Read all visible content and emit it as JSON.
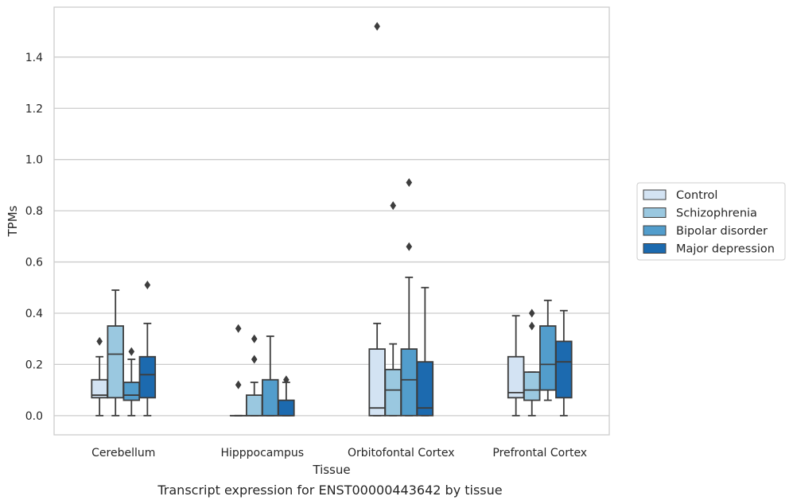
{
  "chart_data": {
    "type": "box",
    "caption": "Transcript expression for ENST00000443642 by tissue",
    "xlabel": "Tissue",
    "ylabel": "TPMs",
    "ylim": [
      -0.075,
      1.595
    ],
    "yticks": [
      0.0,
      0.2,
      0.4,
      0.6,
      0.8,
      1.0,
      1.2,
      1.4
    ],
    "ytick_labels": [
      "0.0",
      "0.2",
      "0.4",
      "0.6",
      "0.8",
      "1.0",
      "1.2",
      "1.4"
    ],
    "grid": "horizontal",
    "categories": [
      "Cerebellum",
      "Hipppocampus",
      "Orbitofontal Cortex",
      "Prefrontal Cortex"
    ],
    "legend_position": "right",
    "series": [
      {
        "name": "Control",
        "color": "#d3e3f3",
        "boxes": [
          {
            "whislo": 0.0,
            "q1": 0.07,
            "med": 0.08,
            "q3": 0.14,
            "whishi": 0.23,
            "fliers": [
              0.29
            ]
          },
          {
            "whislo": 0.0,
            "q1": 0.0,
            "med": 0.0,
            "q3": 0.0,
            "whishi": 0.0,
            "fliers": [
              0.12,
              0.34
            ]
          },
          {
            "whislo": 0.0,
            "q1": 0.0,
            "med": 0.03,
            "q3": 0.26,
            "whishi": 0.36,
            "fliers": [
              1.52
            ]
          },
          {
            "whislo": 0.0,
            "q1": 0.07,
            "med": 0.09,
            "q3": 0.23,
            "whishi": 0.39,
            "fliers": []
          }
        ]
      },
      {
        "name": "Schizophrenia",
        "color": "#9ac8e0",
        "boxes": [
          {
            "whislo": 0.0,
            "q1": 0.07,
            "med": 0.24,
            "q3": 0.35,
            "whishi": 0.49,
            "fliers": []
          },
          {
            "whislo": 0.0,
            "q1": 0.0,
            "med": 0.0,
            "q3": 0.08,
            "whishi": 0.13,
            "fliers": [
              0.22,
              0.3
            ]
          },
          {
            "whislo": 0.0,
            "q1": 0.0,
            "med": 0.1,
            "q3": 0.18,
            "whishi": 0.28,
            "fliers": [
              0.82
            ]
          },
          {
            "whislo": 0.0,
            "q1": 0.06,
            "med": 0.1,
            "q3": 0.17,
            "whishi": 0.17,
            "fliers": [
              0.35,
              0.4
            ]
          }
        ]
      },
      {
        "name": "Bipolar disorder",
        "color": "#529dcc",
        "boxes": [
          {
            "whislo": 0.0,
            "q1": 0.06,
            "med": 0.08,
            "q3": 0.13,
            "whishi": 0.22,
            "fliers": [
              0.25
            ]
          },
          {
            "whislo": 0.0,
            "q1": 0.0,
            "med": 0.0,
            "q3": 0.14,
            "whishi": 0.31,
            "fliers": []
          },
          {
            "whislo": 0.0,
            "q1": 0.0,
            "med": 0.14,
            "q3": 0.26,
            "whishi": 0.54,
            "fliers": [
              0.66,
              0.91
            ]
          },
          {
            "whislo": 0.06,
            "q1": 0.1,
            "med": 0.2,
            "q3": 0.35,
            "whishi": 0.45,
            "fliers": []
          }
        ]
      },
      {
        "name": "Major depression",
        "color": "#1c6aaf",
        "boxes": [
          {
            "whislo": 0.0,
            "q1": 0.07,
            "med": 0.16,
            "q3": 0.23,
            "whishi": 0.36,
            "fliers": [
              0.51
            ]
          },
          {
            "whislo": 0.0,
            "q1": 0.0,
            "med": 0.0,
            "q3": 0.06,
            "whishi": 0.13,
            "fliers": [
              0.14
            ]
          },
          {
            "whislo": 0.0,
            "q1": 0.0,
            "med": 0.03,
            "q3": 0.21,
            "whishi": 0.5,
            "fliers": []
          },
          {
            "whislo": 0.0,
            "q1": 0.07,
            "med": 0.21,
            "q3": 0.29,
            "whishi": 0.41,
            "fliers": []
          }
        ]
      }
    ]
  }
}
